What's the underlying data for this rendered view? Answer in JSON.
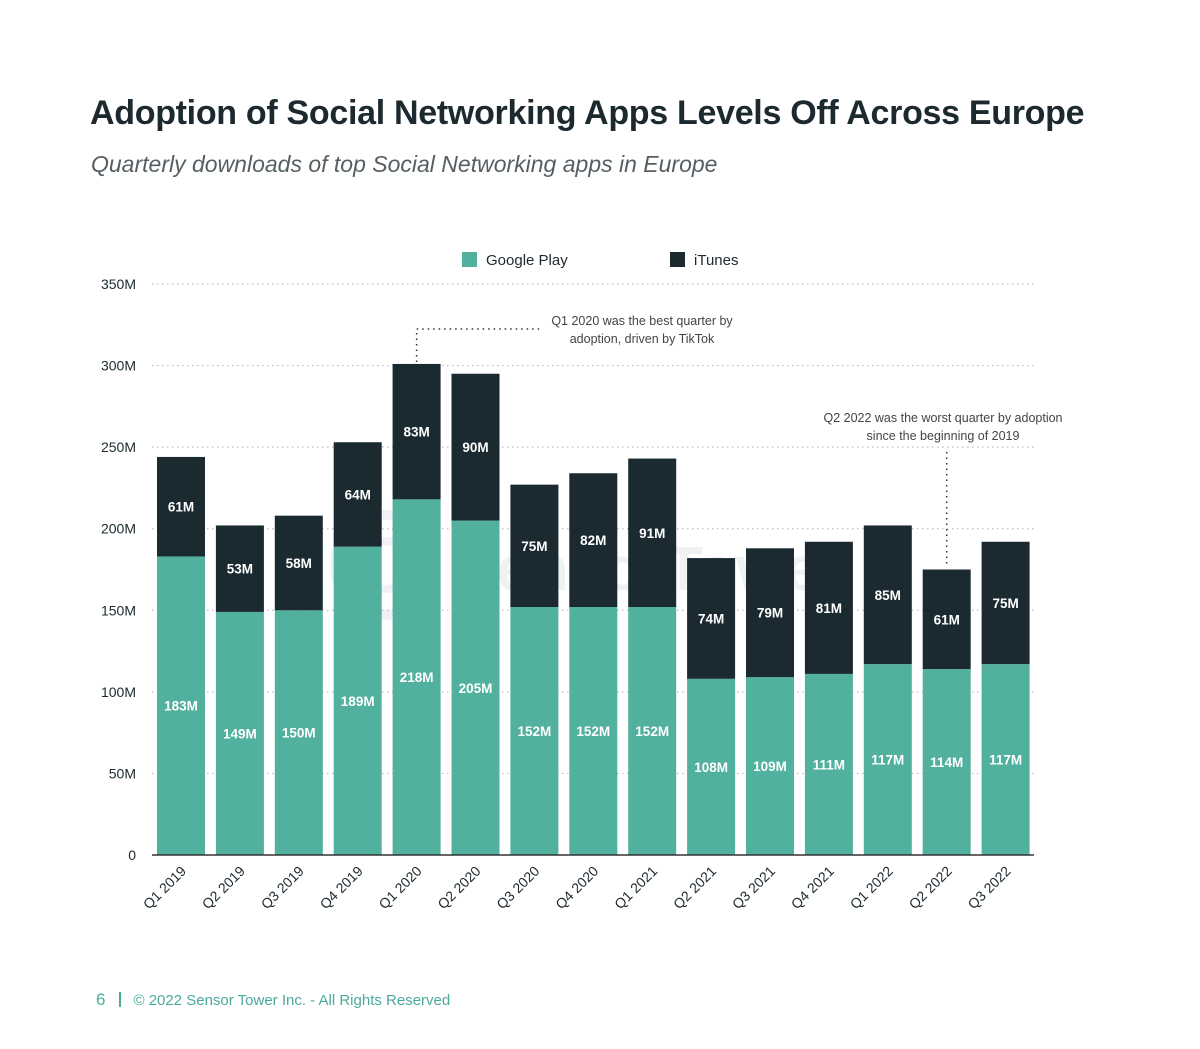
{
  "header": {
    "title": "Adoption of Social Networking Apps Levels Off Across Europe",
    "subtitle": "Quarterly downloads of top Social Networking apps in Europe"
  },
  "colors": {
    "google_play": "#52b09e",
    "itunes": "#1a2a30",
    "gridline": "#bdbdbd",
    "footer": "#4aaa9a"
  },
  "chart_data": {
    "type": "bar",
    "stacked": true,
    "categories": [
      "Q1 2019",
      "Q2 2019",
      "Q3 2019",
      "Q4 2019",
      "Q1 2020",
      "Q2 2020",
      "Q3 2020",
      "Q4 2020",
      "Q1 2021",
      "Q2 2021",
      "Q3 2021",
      "Q4 2021",
      "Q1 2022",
      "Q2 2022",
      "Q3 2022"
    ],
    "series": [
      {
        "name": "Google Play",
        "color": "#52b09e",
        "values": [
          183,
          149,
          150,
          189,
          218,
          205,
          152,
          152,
          152,
          108,
          109,
          111,
          117,
          114,
          117
        ],
        "labels": [
          "183M",
          "149M",
          "150M",
          "189M",
          "218M",
          "205M",
          "152M",
          "152M",
          "152M",
          "108M",
          "109M",
          "111M",
          "117M",
          "114M",
          "117M"
        ]
      },
      {
        "name": "iTunes",
        "color": "#1a2a30",
        "values": [
          61,
          53,
          58,
          64,
          83,
          90,
          75,
          82,
          91,
          74,
          79,
          81,
          85,
          61,
          75
        ],
        "labels": [
          "61M",
          "53M",
          "58M",
          "64M",
          "83M",
          "90M",
          "75M",
          "82M",
          "91M",
          "74M",
          "79M",
          "81M",
          "85M",
          "61M",
          "75M"
        ]
      }
    ],
    "unit": "M",
    "ylim": [
      0,
      350
    ],
    "y_ticks": [
      0,
      50,
      100,
      150,
      200,
      250,
      300,
      350
    ],
    "y_tick_labels": [
      "0",
      "50M",
      "100M",
      "150M",
      "200M",
      "250M",
      "300M",
      "350M"
    ],
    "grid": true,
    "legend_position": "top-center",
    "xlabel": "",
    "ylabel": "",
    "annotations": [
      {
        "category": "Q1 2020",
        "lines": [
          "Q1 2020 was the best quarter by",
          "adoption, driven by TikTok"
        ]
      },
      {
        "category": "Q2 2022",
        "lines": [
          "Q2 2022 was the worst quarter by adoption",
          "since the beginning of 2019"
        ]
      }
    ]
  },
  "watermark": "SensorTower",
  "footer": {
    "page_number": "6",
    "copyright": "© 2022 Sensor Tower Inc. - All Rights Reserved"
  }
}
